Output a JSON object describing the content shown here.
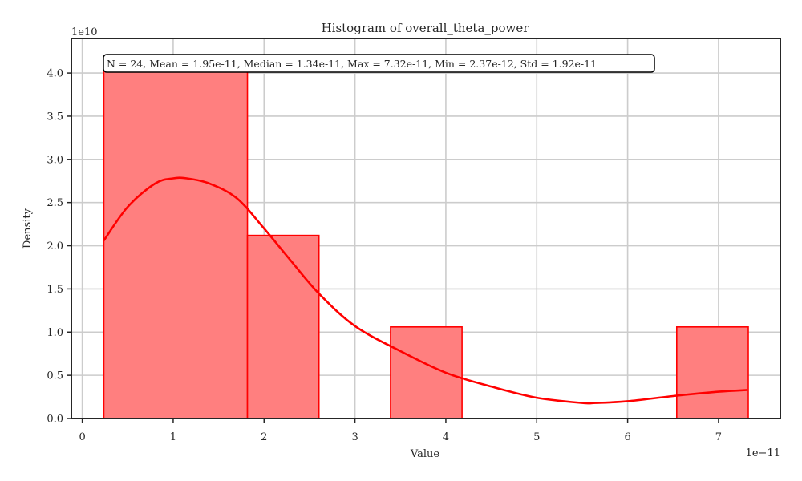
{
  "chart_data": {
    "type": "histogram",
    "title": "Histogram of overall_theta_power",
    "xlabel": "Value",
    "ylabel": "Density",
    "x_multiplier": "1e−11",
    "y_multiplier": "1e10",
    "xlim": [
      -0.12,
      7.68
    ],
    "ylim": [
      0,
      4.4
    ],
    "x_ticks": [
      0,
      1,
      2,
      3,
      4,
      5,
      6,
      7
    ],
    "x_tick_labels": [
      "0",
      "1",
      "2",
      "3",
      "4",
      "5",
      "6",
      "7"
    ],
    "y_ticks": [
      0,
      0.5,
      1.0,
      1.5,
      2.0,
      2.5,
      3.0,
      3.5,
      4.0
    ],
    "y_tick_labels": [
      "0.0",
      "0.5",
      "1.0",
      "1.5",
      "2.0",
      "2.5",
      "3.0",
      "3.5",
      "4.0"
    ],
    "grid": true,
    "bar_color": "#ff7f7f",
    "edge_color": "#ff0000",
    "kde_color": "#ff0000",
    "bins": [
      {
        "x0": 0.237,
        "x1": 1.817,
        "density": 4.12
      },
      {
        "x0": 1.817,
        "x1": 2.604,
        "density": 2.12
      },
      {
        "x0": 2.604,
        "x1": 3.391,
        "density": 0.0
      },
      {
        "x0": 3.391,
        "x1": 4.178,
        "density": 1.06
      },
      {
        "x0": 4.178,
        "x1": 4.966,
        "density": 0.0
      },
      {
        "x0": 4.966,
        "x1": 5.753,
        "density": 0.0
      },
      {
        "x0": 5.753,
        "x1": 6.54,
        "density": 0.0
      },
      {
        "x0": 6.54,
        "x1": 7.327,
        "density": 1.06
      }
    ],
    "kde": {
      "x": [
        0.237,
        0.5,
        0.8,
        1.0,
        1.15,
        1.4,
        1.7,
        2.0,
        2.3,
        2.6,
        3.0,
        3.5,
        4.0,
        4.5,
        5.0,
        5.5,
        5.65,
        6.0,
        6.5,
        7.0,
        7.32
      ],
      "y": [
        2.06,
        2.45,
        2.72,
        2.78,
        2.78,
        2.72,
        2.55,
        2.2,
        1.82,
        1.45,
        1.07,
        0.78,
        0.53,
        0.37,
        0.24,
        0.18,
        0.18,
        0.2,
        0.26,
        0.31,
        0.33
      ]
    },
    "stats_text": "N = 24, Mean = 1.95e-11, Median = 1.34e-11, Max = 7.32e-11, Min = 2.37e-12, Std = 1.92e-11",
    "stats_box": "top-left"
  }
}
